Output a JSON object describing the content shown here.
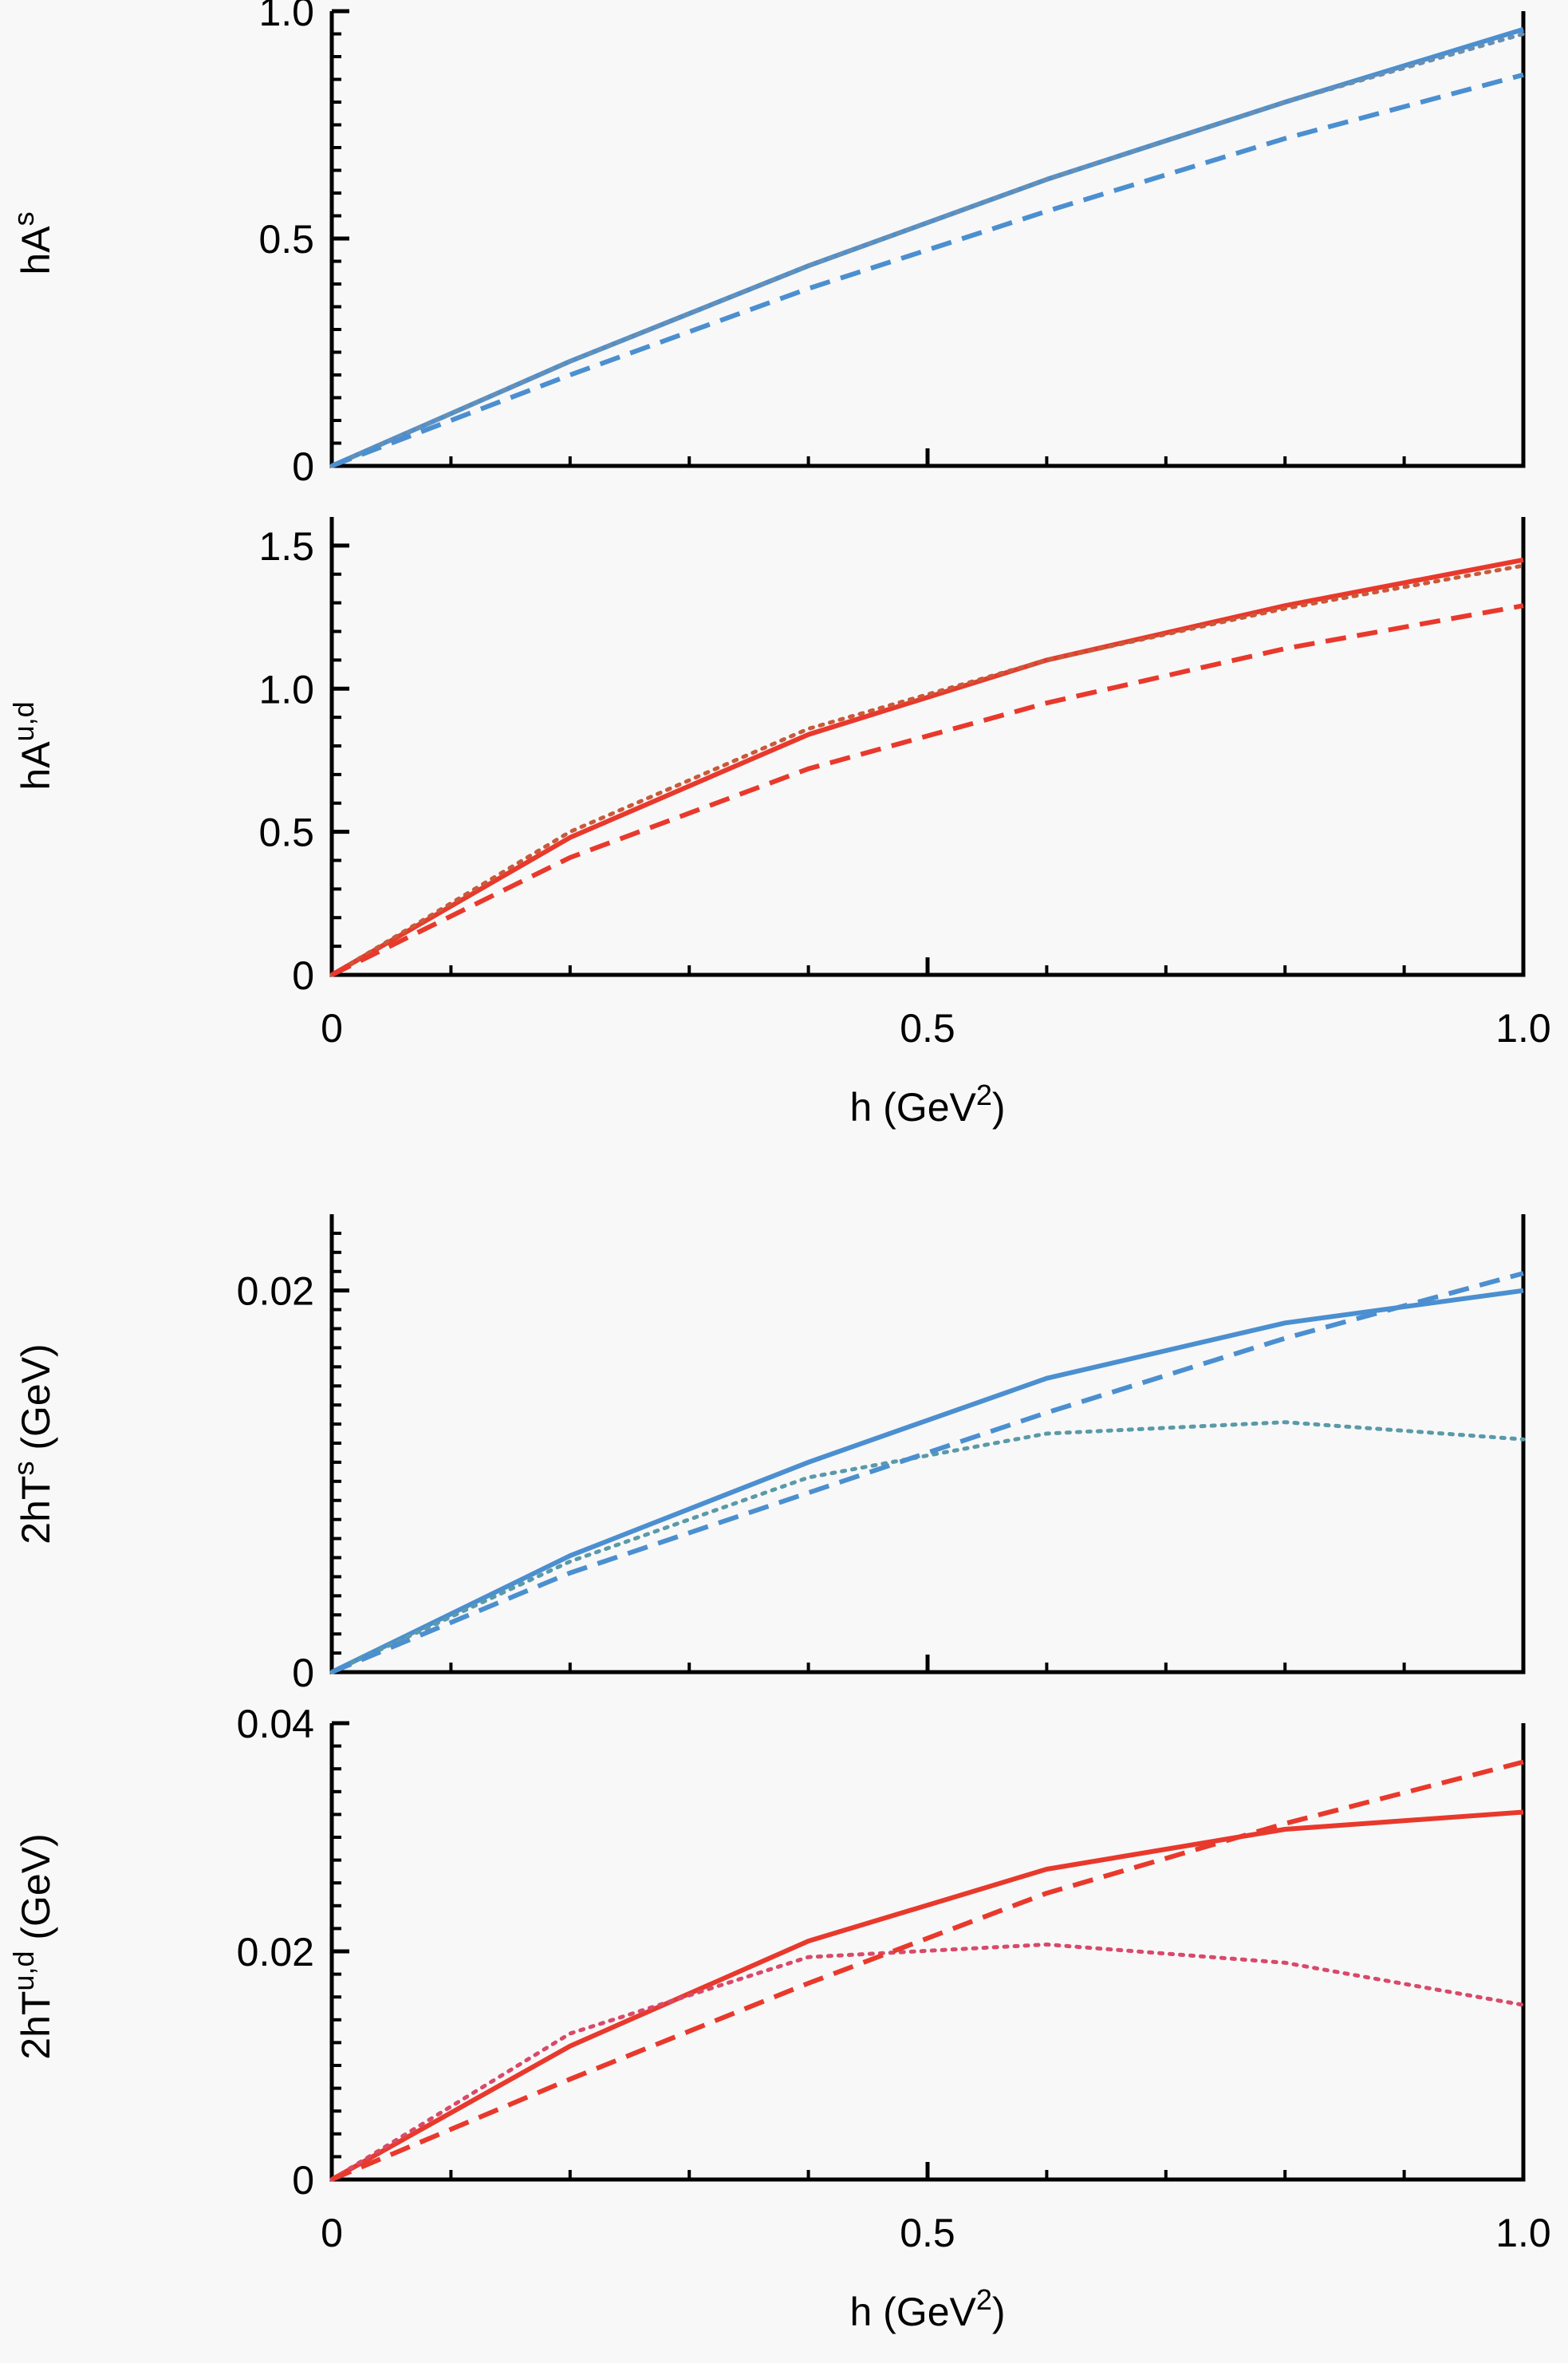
{
  "chart_data": [
    {
      "type": "line",
      "ylabel": "hA",
      "ylabel_sup": "s",
      "xlabel": "",
      "xlim": [
        0,
        1
      ],
      "ylim": [
        0,
        1.0
      ],
      "yticks": [
        0,
        0.5,
        1.0
      ],
      "ytick_labels": [
        "0",
        "0.5",
        "1.0"
      ],
      "xticks": [],
      "xtick_labels": [],
      "series": [
        {
          "style": "solid",
          "color": "#4b8fd0",
          "x": [
            0,
            0.2,
            0.4,
            0.6,
            0.8,
            1.0
          ],
          "y": [
            0,
            0.23,
            0.44,
            0.63,
            0.8,
            0.96
          ]
        },
        {
          "style": "dotted",
          "color": "#6a8fb0",
          "x": [
            0,
            0.2,
            0.4,
            0.6,
            0.8,
            1.0
          ],
          "y": [
            0,
            0.23,
            0.44,
            0.63,
            0.8,
            0.95
          ]
        },
        {
          "style": "dashed",
          "color": "#4b8fd0",
          "x": [
            0,
            0.2,
            0.4,
            0.6,
            0.8,
            1.0
          ],
          "y": [
            0,
            0.2,
            0.39,
            0.56,
            0.72,
            0.86
          ]
        }
      ]
    },
    {
      "type": "line",
      "ylabel": "hA",
      "ylabel_sup": "u,d",
      "xlabel": "h (GeV",
      "xlabel_sup": "2",
      "xlabel_end": ")",
      "xlim": [
        0,
        1
      ],
      "ylim": [
        0,
        1.6
      ],
      "yticks": [
        0,
        0.5,
        1.0,
        1.5
      ],
      "ytick_labels": [
        "0",
        "0.5",
        "1.0",
        "1.5"
      ],
      "xticks": [
        0,
        0.5,
        1.0
      ],
      "xtick_labels": [
        "0",
        "0.5",
        "1.0"
      ],
      "series": [
        {
          "style": "solid",
          "color": "#e8392c",
          "x": [
            0,
            0.2,
            0.4,
            0.6,
            0.8,
            1.0
          ],
          "y": [
            0,
            0.48,
            0.84,
            1.1,
            1.29,
            1.45
          ]
        },
        {
          "style": "dotted",
          "color": "#c85a3a",
          "x": [
            0,
            0.2,
            0.4,
            0.6,
            0.8,
            1.0
          ],
          "y": [
            0,
            0.5,
            0.86,
            1.1,
            1.28,
            1.43
          ]
        },
        {
          "style": "dashed",
          "color": "#e8392c",
          "x": [
            0,
            0.2,
            0.4,
            0.6,
            0.8,
            1.0
          ],
          "y": [
            0,
            0.41,
            0.72,
            0.95,
            1.14,
            1.29
          ]
        }
      ]
    },
    {
      "type": "line",
      "ylabel": "2hT",
      "ylabel_sup": "s",
      "ylabel_end": " (GeV)",
      "xlabel": "",
      "xlim": [
        0,
        1
      ],
      "ylim": [
        0,
        0.024
      ],
      "yticks": [
        0,
        0.02
      ],
      "ytick_labels": [
        "0",
        "0.02"
      ],
      "xticks": [],
      "xtick_labels": [],
      "series": [
        {
          "style": "solid",
          "color": "#4b8fd0",
          "x": [
            0,
            0.2,
            0.4,
            0.6,
            0.8,
            1.0
          ],
          "y": [
            0,
            0.0061,
            0.011,
            0.0154,
            0.0183,
            0.02
          ]
        },
        {
          "style": "dotted",
          "color": "#5a9aa8",
          "x": [
            0,
            0.2,
            0.4,
            0.6,
            0.8,
            1.0
          ],
          "y": [
            0,
            0.0058,
            0.0102,
            0.0125,
            0.0131,
            0.0122
          ]
        },
        {
          "style": "dashed",
          "color": "#4b8fd0",
          "x": [
            0,
            0.2,
            0.4,
            0.6,
            0.8,
            1.0
          ],
          "y": [
            0,
            0.0052,
            0.0094,
            0.0136,
            0.0175,
            0.0209
          ]
        }
      ]
    },
    {
      "type": "line",
      "ylabel": "2hT",
      "ylabel_sup": "u,d",
      "ylabel_end": " (GeV)",
      "xlabel": "h (GeV",
      "xlabel_sup": "2",
      "xlabel_end": ")",
      "xlim": [
        0,
        1
      ],
      "ylim": [
        0,
        0.04
      ],
      "yticks": [
        0,
        0.02,
        0.04
      ],
      "ytick_labels": [
        "0",
        "0.02",
        "0.04"
      ],
      "xticks": [
        0,
        0.5,
        1.0
      ],
      "xtick_labels": [
        "0",
        "0.5",
        "1.0"
      ],
      "series": [
        {
          "style": "solid",
          "color": "#e8392c",
          "x": [
            0,
            0.2,
            0.4,
            0.6,
            0.8,
            1.0
          ],
          "y": [
            0,
            0.0117,
            0.0209,
            0.0272,
            0.0307,
            0.0322
          ]
        },
        {
          "style": "dotted",
          "color": "#d84a6a",
          "x": [
            0,
            0.2,
            0.4,
            0.6,
            0.8,
            1.0
          ],
          "y": [
            0,
            0.0128,
            0.0195,
            0.0206,
            0.019,
            0.0153
          ]
        },
        {
          "style": "dashed",
          "color": "#e8392c",
          "x": [
            0,
            0.2,
            0.4,
            0.6,
            0.8,
            1.0
          ],
          "y": [
            0,
            0.0088,
            0.0172,
            0.0251,
            0.0312,
            0.0366
          ]
        }
      ]
    }
  ]
}
